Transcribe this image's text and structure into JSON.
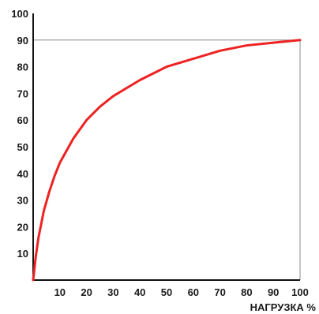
{
  "chart_data": {
    "type": "line",
    "title": "",
    "xlabel": "НАГРУЗКА %",
    "ylabel": "",
    "xlim": [
      0,
      100
    ],
    "ylim": [
      0,
      100
    ],
    "x_ticks": [
      "10",
      "20",
      "30",
      "40",
      "50",
      "60",
      "70",
      "80",
      "90",
      "100"
    ],
    "y_ticks": [
      "10",
      "20",
      "30",
      "40",
      "50",
      "60",
      "70",
      "80",
      "90",
      "100"
    ],
    "grid": false,
    "legend": "none",
    "reference_line": {
      "y": 90,
      "x_end": 100,
      "color": "#888888"
    },
    "series": [
      {
        "color": "#ee2222",
        "x": [
          0,
          1,
          2,
          4,
          6,
          8,
          10,
          15,
          20,
          25,
          30,
          40,
          50,
          60,
          70,
          80,
          90,
          100
        ],
        "y": [
          0,
          9,
          16,
          26,
          33,
          39,
          44,
          53,
          60,
          65,
          69,
          75,
          80,
          83,
          86,
          88,
          89,
          90
        ]
      }
    ]
  }
}
